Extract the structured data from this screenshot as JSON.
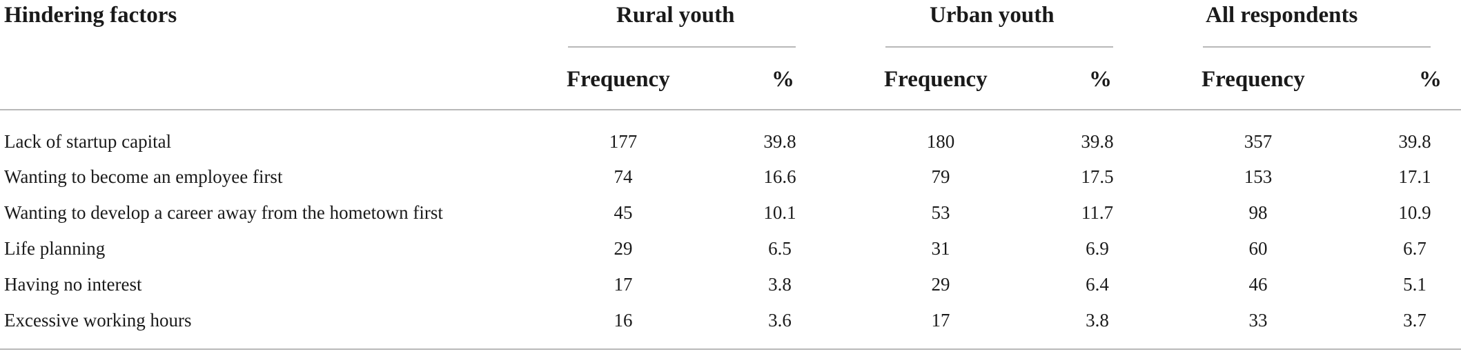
{
  "table": {
    "header": {
      "factor": "Hindering factors",
      "groups": [
        "Rural youth",
        "Urban youth",
        "All respondents"
      ],
      "sub": [
        "Frequency",
        "%"
      ]
    },
    "rows": [
      {
        "label": "Lack of startup capital",
        "values": [
          "177",
          "39.8",
          "180",
          "39.8",
          "357",
          "39.8"
        ]
      },
      {
        "label": "Wanting to become an employee first",
        "values": [
          "74",
          "16.6",
          "79",
          "17.5",
          "153",
          "17.1"
        ]
      },
      {
        "label": "Wanting to develop a career away from the hometown first",
        "values": [
          "45",
          "10.1",
          "53",
          "11.7",
          "98",
          "10.9"
        ]
      },
      {
        "label": "Life planning",
        "values": [
          "29",
          "6.5",
          "31",
          "6.9",
          "60",
          "6.7"
        ]
      },
      {
        "label": "Having no interest",
        "values": [
          "17",
          "3.8",
          "29",
          "6.4",
          "46",
          "5.1"
        ]
      },
      {
        "label": "Excessive working hours",
        "values": [
          "16",
          "3.6",
          "17",
          "3.8",
          "33",
          "3.7"
        ]
      }
    ]
  }
}
